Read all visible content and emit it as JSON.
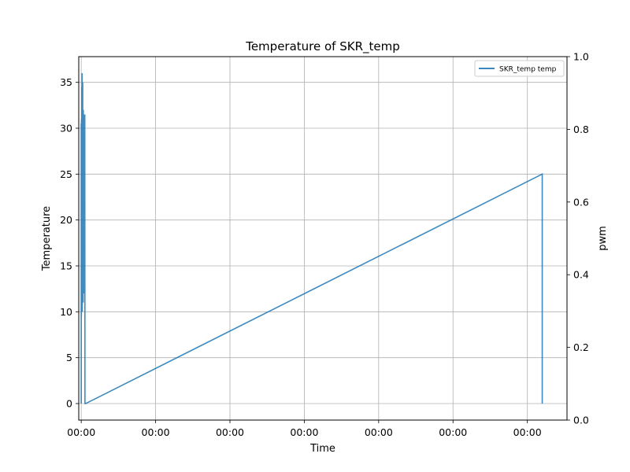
{
  "chart_data": {
    "type": "line",
    "title": "Temperature of SKR_temp",
    "xlabel": "Time",
    "ylabel": "Temperature",
    "y2label": "pwm",
    "x_tick_labels": [
      "00:00",
      "00:00",
      "00:00",
      "00:00",
      "00:00",
      "00:00",
      "00:00"
    ],
    "y_ticks": [
      0,
      5,
      10,
      15,
      20,
      25,
      30,
      35
    ],
    "ylim": [
      -1.8,
      37.8
    ],
    "y2_ticks": [
      "0.0",
      "0.2",
      "0.4",
      "0.6",
      "0.8",
      "1.0"
    ],
    "y2lim": [
      0,
      1
    ],
    "xlim": [
      -0.0333,
      6.533
    ],
    "grid": true,
    "legend_position": "top-right",
    "line_color": "#1f77b4",
    "series": [
      {
        "name": "SKR_temp temp",
        "x": [
          0,
          0,
          0.002,
          0.004,
          0.006,
          0.008,
          0.01,
          0.012,
          0.014,
          0.016,
          0.018,
          0.02,
          0.022,
          0.024,
          0.026,
          0.028,
          0.03,
          0.032,
          0.034,
          0.036,
          0.038,
          0.04,
          0.042,
          0.044,
          0.046,
          0.048,
          0.05,
          0.06,
          6.2,
          6.2
        ],
        "y": [
          0,
          30.5,
          9.5,
          31.0,
          14.0,
          34.5,
          11.0,
          36.0,
          10.0,
          33.0,
          12.5,
          35.0,
          14.5,
          30.0,
          11.0,
          32.0,
          19.5,
          31.5,
          12.0,
          30.5,
          15.0,
          31.5,
          18.5,
          30.0,
          21.0,
          31.5,
          0.0,
          0.0,
          25.0,
          0.0
        ]
      }
    ]
  }
}
